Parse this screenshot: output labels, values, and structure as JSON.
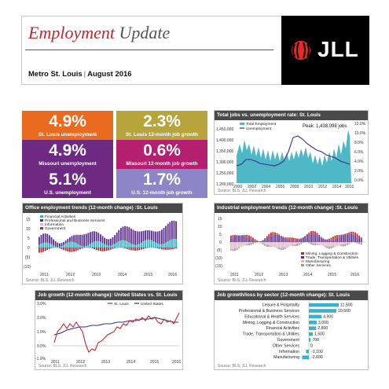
{
  "header": {
    "title_main": "Employment",
    "title_rest": "Update",
    "market": "Metro St. Louis",
    "separator": "|",
    "period": "August 2016",
    "logo_text": "JLL"
  },
  "colors": {
    "orange": "#ea6a1f",
    "olive": "#b7a43a",
    "magenta": "#b51f6f",
    "purple": "#6e2a83",
    "lavender": "#8c86c6",
    "teal": "#4fb8c6",
    "navy_line": "#3b2d86",
    "bar_blue": "#35b2c9",
    "bar_red": "#c0272d",
    "bar_purple": "#5c2d91",
    "bar_pink": "#e9b3c9",
    "bar_gray": "#9a9a9a",
    "sector_bar": "#3ab0cf",
    "header_red": "#c0272d"
  },
  "tiles": [
    {
      "value": "4.9%",
      "label": "St. Louis unemployment"
    },
    {
      "value": "2.3%",
      "label": "St. Louis 12-month job growth"
    },
    {
      "value": "4.9%",
      "label": "Missouri unemployment"
    },
    {
      "value": "0.6%",
      "label": "Missouri 12-month job growth"
    },
    {
      "value": "5.1%",
      "label": "U.S. unemployment"
    },
    {
      "value": "1.7%",
      "label": "U.S. 12-month job growth"
    }
  ],
  "total_jobs": {
    "title": "Total jobs vs. unemployment rate: St. Louis",
    "source": "Source: BLS, JLL Research",
    "peak_label": "Peak: 1,438,098 jobs",
    "legend": [
      "Total Employment",
      "Unemployment"
    ],
    "y_left_ticks": [
      "1,450,000",
      "1,400,000",
      "1,350,000",
      "1,300,000",
      "1,250,000",
      "1,200,000"
    ],
    "y_right_ticks": [
      "12.0%",
      "10.0%",
      "8.0%",
      "6.0%",
      "4.0%",
      "2.0%",
      "0.0%"
    ],
    "x_ticks": [
      "2000",
      "2002",
      "2004",
      "2006",
      "2008",
      "2010",
      "2012",
      "2014",
      "2016"
    ]
  },
  "office": {
    "title": "Office employment trends (12-month change) :St. Louis",
    "source": "Source: BLS, JLL Research",
    "legend": [
      "Financial Activities",
      "Professional and Business Services",
      "Information",
      "Government"
    ],
    "y_ticks": [
      "15",
      "10",
      "5",
      "0",
      "(5)",
      "(10)"
    ],
    "x_ticks": [
      "2011",
      "2012",
      "2013",
      "2014",
      "2015",
      "2016"
    ]
  },
  "industrial": {
    "title": "Industrial employment trends (12-month change) :St. Louis",
    "source": "Source: BLS, JLL Research",
    "legend": [
      "Mining, Logging & Construction",
      "Trade, Transportation & Utilities",
      "Manufacturing",
      "Other Services"
    ],
    "y_ticks": [
      "15",
      "10",
      "5",
      "0",
      "(5)",
      "(10)",
      "(15)"
    ],
    "x_ticks": [
      "2011",
      "2012",
      "2013",
      "2014",
      "2015",
      "2016"
    ]
  },
  "job_growth": {
    "title": "Job growth (12-month change): United States vs. St. Louis",
    "source": "Source: BLS, JLL Research",
    "legend": [
      "St. Louis",
      "United States"
    ],
    "y_ticks": [
      "3.0%",
      "2.0%",
      "1.0%",
      "0.0%",
      "-1.0%"
    ],
    "x_ticks": [
      "2011",
      "2012",
      "2013",
      "2014",
      "2015",
      "2016"
    ]
  },
  "sectors": {
    "title": "Job growth/loss by sector (12-month change): St. Louis",
    "source": "Source: BLS, JLL Research",
    "rows": [
      {
        "label": "Leisure & Hospitality",
        "value": 11500,
        "display": "11,500"
      },
      {
        "label": "Professional & Business Services",
        "value": 10600,
        "display": "10,600"
      },
      {
        "label": "Educational & Health Services",
        "value": 4900,
        "display": "4,900"
      },
      {
        "label": "Mining, Logging & Construction",
        "value": 3000,
        "display": "3,000"
      },
      {
        "label": "Financial Activities",
        "value": 2800,
        "display": "2,800"
      },
      {
        "label": "Trade, Transportation & Utilities",
        "value": 1500,
        "display": "1,500"
      },
      {
        "label": "Government",
        "value": 700,
        "display": "700"
      },
      {
        "label": "Other Services",
        "value": 0,
        "display": "0"
      },
      {
        "label": "Information",
        "value": -1100,
        "display": "-1,100"
      },
      {
        "label": "Manufacturing",
        "value": -2600,
        "display": "-2,600"
      }
    ]
  }
}
